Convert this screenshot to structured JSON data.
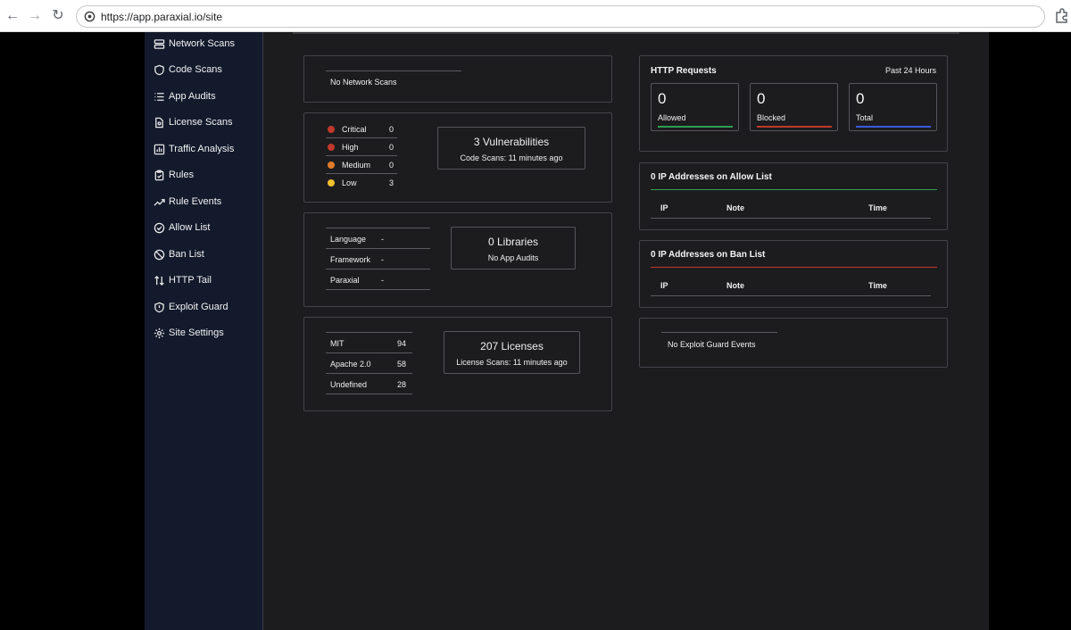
{
  "browser": {
    "url": "https://app.paraxial.io/site"
  },
  "sidebar": {
    "items": [
      {
        "label": "Network Scans",
        "icon": "server-icon"
      },
      {
        "label": "Code Scans",
        "icon": "shield-icon"
      },
      {
        "label": "App Audits",
        "icon": "list-icon"
      },
      {
        "label": "License Scans",
        "icon": "file-icon"
      },
      {
        "label": "Traffic Analysis",
        "icon": "bar-chart-icon"
      },
      {
        "label": "Rules",
        "icon": "clipboard-icon"
      },
      {
        "label": "Rule Events",
        "icon": "trending-icon"
      },
      {
        "label": "Allow List",
        "icon": "check-circle-icon"
      },
      {
        "label": "Ban List",
        "icon": "ban-icon"
      },
      {
        "label": "HTTP Tail",
        "icon": "arrows-icon"
      },
      {
        "label": "Exploit Guard",
        "icon": "shield-alert-icon"
      },
      {
        "label": "Site Settings",
        "icon": "gear-icon"
      }
    ]
  },
  "network_scans": {
    "message": "No Network Scans"
  },
  "code_scans": {
    "severities": [
      {
        "label": "Critical",
        "count": "0",
        "color": "#c0392b"
      },
      {
        "label": "High",
        "count": "0",
        "color": "#c0392b"
      },
      {
        "label": "Medium",
        "count": "0",
        "color": "#e07b2c"
      },
      {
        "label": "Low",
        "count": "3",
        "color": "#f2c12e"
      }
    ],
    "title": "3 Vulnerabilities",
    "subtitle": "Code Scans: 11 minutes ago"
  },
  "app_audits": {
    "rows": [
      {
        "label": "Language",
        "value": "-"
      },
      {
        "label": "Framework",
        "value": "-"
      },
      {
        "label": "Paraxial",
        "value": "-"
      }
    ],
    "title": "0 Libraries",
    "subtitle": "No App Audits"
  },
  "licenses": {
    "rows": [
      {
        "label": "MIT",
        "value": "94"
      },
      {
        "label": "Apache 2.0",
        "value": "58"
      },
      {
        "label": "Undefined",
        "value": "28"
      }
    ],
    "title": "207 Licenses",
    "subtitle": "License Scans: 11 minutes ago"
  },
  "http_requests": {
    "title": "HTTP Requests",
    "period": "Past 24 Hours",
    "stats": [
      {
        "value": "0",
        "label": "Allowed",
        "color": "#2e9e4f"
      },
      {
        "value": "0",
        "label": "Blocked",
        "color": "#c0392b"
      },
      {
        "value": "0",
        "label": "Total",
        "color": "#3b5bdb"
      }
    ]
  },
  "allow_list": {
    "title": "0 IP Addresses on Allow List",
    "accent": "#2e9e4f",
    "columns": [
      "IP",
      "Note",
      "Time"
    ]
  },
  "ban_list": {
    "title": "0 IP Addresses on Ban List",
    "accent": "#c0392b",
    "columns": [
      "IP",
      "Note",
      "Time"
    ]
  },
  "exploit_guard": {
    "message": "No Exploit Guard Events"
  }
}
